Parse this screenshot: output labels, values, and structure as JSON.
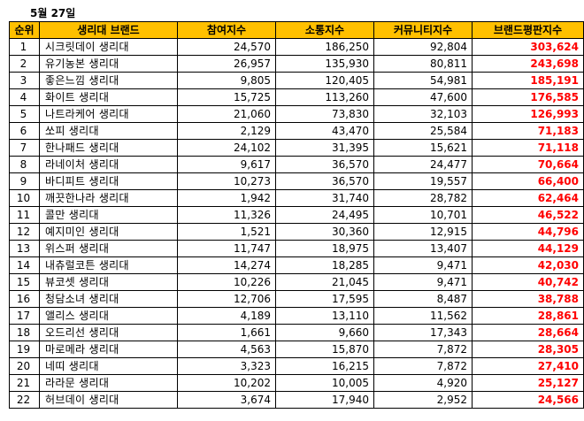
{
  "date_label": "5월 27일",
  "headers": [
    "순위",
    "생리대 브랜드",
    "참여지수",
    "소통지수",
    "커뮤니티지수",
    "브랜드평판지수"
  ],
  "rows": [
    [
      "1",
      "시크릿데이 생리대",
      "24,570",
      "186,250",
      "92,804",
      "303,624"
    ],
    [
      "2",
      "유기농본 생리대",
      "26,957",
      "135,930",
      "80,811",
      "243,698"
    ],
    [
      "3",
      "좋은느낌 생리대",
      "9,805",
      "120,405",
      "54,981",
      "185,191"
    ],
    [
      "4",
      "화이트 생리대",
      "15,725",
      "113,260",
      "47,600",
      "176,585"
    ],
    [
      "5",
      "나트라케어 생리대",
      "21,060",
      "73,830",
      "32,103",
      "126,993"
    ],
    [
      "6",
      "쏘피 생리대",
      "2,129",
      "43,470",
      "25,584",
      "71,183"
    ],
    [
      "7",
      "한나패드 생리대",
      "24,102",
      "31,395",
      "15,621",
      "71,118"
    ],
    [
      "8",
      "라네이처 생리대",
      "9,617",
      "36,570",
      "24,477",
      "70,664"
    ],
    [
      "9",
      "바디피트 생리대",
      "10,273",
      "36,570",
      "19,557",
      "66,400"
    ],
    [
      "10",
      "깨끗한나라 생리대",
      "1,942",
      "31,740",
      "28,782",
      "62,464"
    ],
    [
      "11",
      "콜만 생리대",
      "11,326",
      "24,495",
      "10,701",
      "46,522"
    ],
    [
      "12",
      "예지미인 생리대",
      "1,521",
      "30,360",
      "12,915",
      "44,796"
    ],
    [
      "13",
      "위스퍼 생리대",
      "11,747",
      "18,975",
      "13,407",
      "44,129"
    ],
    [
      "14",
      "내츄럴코튼 생리대",
      "14,274",
      "18,285",
      "9,471",
      "42,030"
    ],
    [
      "15",
      "뷰코셋 생리대",
      "10,226",
      "21,045",
      "9,471",
      "40,742"
    ],
    [
      "16",
      "청담소녀 생리대",
      "12,706",
      "17,595",
      "8,487",
      "38,788"
    ],
    [
      "17",
      "앨리스 생리대",
      "4,189",
      "13,110",
      "11,562",
      "28,861"
    ],
    [
      "18",
      "오드리선 생리대",
      "1,661",
      "9,660",
      "17,343",
      "28,664"
    ],
    [
      "19",
      "마로메라 생리대",
      "4,563",
      "15,870",
      "7,872",
      "28,305"
    ],
    [
      "20",
      "네띠 생리대",
      "3,323",
      "16,215",
      "7,872",
      "27,410"
    ],
    [
      "21",
      "라라문 생리대",
      "10,202",
      "10,005",
      "4,920",
      "25,127"
    ],
    [
      "22",
      "허브데이 생리대",
      "3,674",
      "17,940",
      "2,952",
      "24,566"
    ]
  ],
  "colors": {
    "header_bg": "#FFC000",
    "index_text": "#FF0000"
  }
}
